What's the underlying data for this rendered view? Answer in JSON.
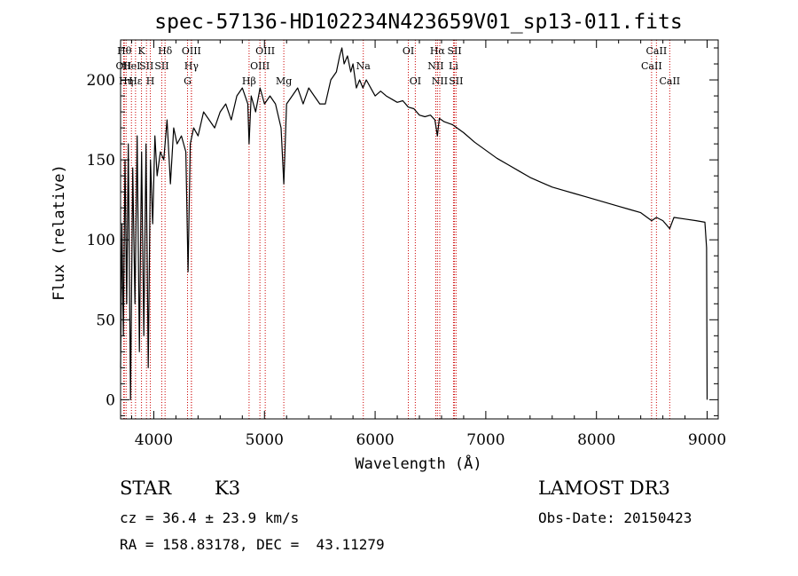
{
  "chart_data": {
    "type": "line",
    "title": "spec-57136-HD102234N423659V01_sp13-011.fits",
    "xlabel": "Wavelength (Å)",
    "ylabel": "Flux (relative)",
    "xlim": [
      3700,
      9100
    ],
    "ylim": [
      -12,
      225
    ],
    "xticks": [
      4000,
      5000,
      6000,
      7000,
      8000,
      9000
    ],
    "yticks": [
      0,
      50,
      100,
      150,
      200
    ],
    "series": [
      {
        "name": "flux",
        "x": [
          3700,
          3712,
          3725,
          3740,
          3755,
          3770,
          3790,
          3810,
          3830,
          3850,
          3870,
          3890,
          3910,
          3930,
          3950,
          3970,
          3990,
          4010,
          4030,
          4060,
          4090,
          4120,
          4150,
          4180,
          4210,
          4250,
          4290,
          4310,
          4330,
          4360,
          4400,
          4450,
          4500,
          4550,
          4600,
          4650,
          4700,
          4750,
          4800,
          4850,
          4861,
          4880,
          4920,
          4960,
          5000,
          5050,
          5100,
          5150,
          5175,
          5200,
          5250,
          5300,
          5350,
          5400,
          5450,
          5500,
          5550,
          5600,
          5650,
          5680,
          5700,
          5720,
          5750,
          5780,
          5800,
          5830,
          5860,
          5890,
          5920,
          5960,
          6000,
          6050,
          6100,
          6150,
          6200,
          6250,
          6300,
          6350,
          6400,
          6450,
          6500,
          6540,
          6563,
          6580,
          6620,
          6700,
          6800,
          6900,
          7000,
          7100,
          7200,
          7300,
          7400,
          7500,
          7600,
          7700,
          7800,
          7900,
          8000,
          8100,
          8200,
          8300,
          8400,
          8498,
          8542,
          8600,
          8662,
          8700,
          8800,
          8900,
          8980,
          8995,
          9000
        ],
        "values": [
          20,
          110,
          40,
          150,
          60,
          160,
          0,
          145,
          60,
          165,
          30,
          155,
          40,
          160,
          20,
          150,
          110,
          165,
          140,
          155,
          150,
          175,
          135,
          170,
          160,
          165,
          155,
          80,
          160,
          170,
          165,
          180,
          175,
          170,
          180,
          185,
          175,
          190,
          195,
          185,
          160,
          190,
          180,
          195,
          185,
          190,
          185,
          170,
          135,
          185,
          190,
          195,
          185,
          195,
          190,
          185,
          185,
          200,
          205,
          215,
          220,
          210,
          215,
          205,
          210,
          195,
          200,
          195,
          200,
          195,
          190,
          193,
          190,
          188,
          186,
          187,
          183,
          182,
          178,
          177,
          178,
          175,
          165,
          176,
          174,
          172,
          167,
          161,
          156,
          151,
          147,
          143,
          139,
          136,
          133,
          131,
          129,
          127,
          125,
          123,
          121,
          119,
          117,
          112,
          114,
          112,
          107,
          114,
          113,
          112,
          111,
          95,
          0
        ]
      }
    ],
    "spectral_lines": [
      {
        "label": "Hθ",
        "x": 3734,
        "row": 0
      },
      {
        "label": "OII",
        "x": 3727,
        "row": 1
      },
      {
        "label": "Hη",
        "x": 3750,
        "row": 2
      },
      {
        "label": "HeI",
        "x": 3798,
        "row": 1
      },
      {
        "label": "Hε",
        "x": 3835,
        "row": 2
      },
      {
        "label": "K",
        "x": 3889,
        "row": 0
      },
      {
        "label": "SII",
        "x": 3934,
        "row": 1
      },
      {
        "label": "H",
        "x": 3969,
        "row": 2
      },
      {
        "label": "Hδ",
        "x": 4102,
        "row": 0
      },
      {
        "label": "SII",
        "x": 4072,
        "row": 1
      },
      {
        "label": "OIII",
        "x": 4340,
        "row": 0
      },
      {
        "label": "Hγ",
        "x": 4340,
        "row": 1
      },
      {
        "label": "G",
        "x": 4305,
        "row": 2
      },
      {
        "label": "Hβ",
        "x": 4861,
        "row": 2
      },
      {
        "label": "OIII",
        "x": 5007,
        "row": 0
      },
      {
        "label": "OIII",
        "x": 4959,
        "row": 1
      },
      {
        "label": "Mg",
        "x": 5175,
        "row": 2
      },
      {
        "label": "Na",
        "x": 5893,
        "row": 1
      },
      {
        "label": "OI",
        "x": 6300,
        "row": 0
      },
      {
        "label": "OI",
        "x": 6363,
        "row": 2
      },
      {
        "label": "Hα",
        "x": 6563,
        "row": 0
      },
      {
        "label": "NII",
        "x": 6548,
        "row": 1
      },
      {
        "label": "NII",
        "x": 6584,
        "row": 2
      },
      {
        "label": "SII",
        "x": 6717,
        "row": 0
      },
      {
        "label": "Li",
        "x": 6708,
        "row": 1
      },
      {
        "label": "SII",
        "x": 6731,
        "row": 2
      },
      {
        "label": "CaII",
        "x": 8542,
        "row": 0
      },
      {
        "label": "CaII",
        "x": 8498,
        "row": 1
      },
      {
        "label": "CaII",
        "x": 8662,
        "row": 2
      }
    ],
    "grid": false,
    "line_marker_color": "#cc0000"
  },
  "info": {
    "object_class": "STAR",
    "subclass": "K3",
    "redshift": "cz = 36.4 ± 23.9 km/s",
    "coords": "RA = 158.83178, DEC =  43.11279",
    "survey": "LAMOST DR3",
    "obs_date": "Obs-Date: 20150423"
  }
}
